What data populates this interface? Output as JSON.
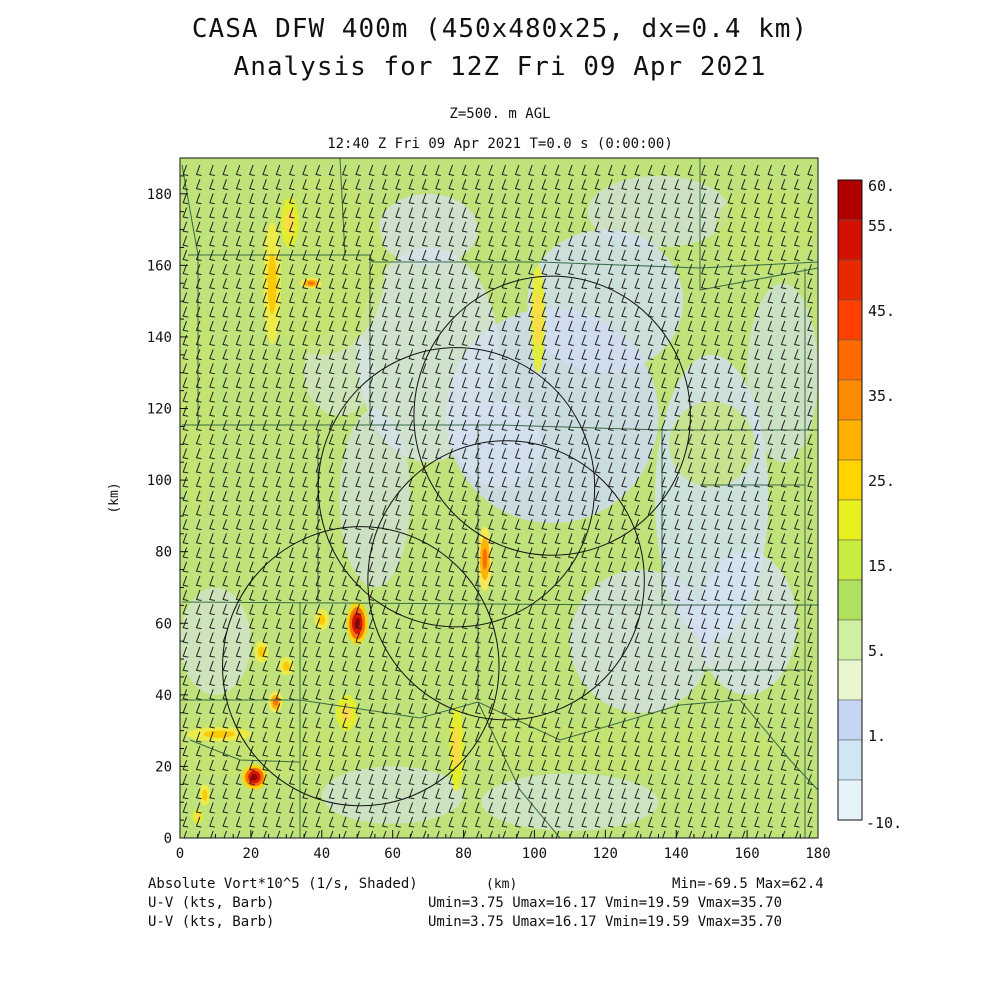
{
  "header": {
    "title_line1": "CASA DFW 400m (450x480x25, dx=0.4 km)",
    "title_line2": "Analysis for 12Z Fri 09 Apr 2021",
    "level": "Z=500. m AGL",
    "time": "12:40 Z Fri 09 Apr 2021   T=0.0 s (0:00:00)"
  },
  "footer": {
    "field_label": "Absolute Vort*10^5 (1/s, Shaded)",
    "xunit": "(km)",
    "minmax": "Min=-69.5 Max=62.4",
    "barb1_label": "U-V (kts, Barb)",
    "barb1_stats": "Umin=3.75 Umax=16.17 Vmin=19.59 Vmax=35.70",
    "barb2_label": "U-V (kts, Barb)",
    "barb2_stats": "Umin=3.75 Umax=16.17 Vmin=19.59 Vmax=35.70"
  },
  "chart_data": {
    "type": "heatmap",
    "title": "Absolute Vort*10^5 (1/s, Shaded)",
    "xlabel": "(km)",
    "ylabel": "(km)",
    "xlim": [
      0,
      180
    ],
    "ylim": [
      0,
      190
    ],
    "xticks": [
      0,
      20,
      40,
      60,
      80,
      100,
      120,
      140,
      160,
      180
    ],
    "yticks": [
      0,
      20,
      40,
      60,
      80,
      100,
      120,
      140,
      160,
      180
    ],
    "colorbar": {
      "labels": [
        "60.",
        "55.",
        "45.",
        "35.",
        "25.",
        "15.",
        "5.",
        "1.",
        "-10."
      ],
      "colors": [
        "#b00000",
        "#d41000",
        "#e82800",
        "#ff4000",
        "#ff6a00",
        "#ff8c00",
        "#ffb000",
        "#ffd400",
        "#e8f020",
        "#c8ec40",
        "#b0e060",
        "#cef0a0",
        "#eaf6d0",
        "#c8d4f4",
        "#d0e6f4",
        "#e6f4fa"
      ]
    },
    "palette": {
      "base_green": "#bfe37a",
      "light_blue": "#ccdaf2",
      "wind_barb": "#222222"
    },
    "hotspots": [
      {
        "x": 50,
        "y": 60,
        "value": 62.4,
        "rx": 3,
        "ry": 6
      },
      {
        "x": 21,
        "y": 17,
        "value": 55,
        "rx": 3.5,
        "ry": 3.5
      },
      {
        "x": 86,
        "y": 78,
        "value": 25,
        "rx": 2,
        "ry": 9
      },
      {
        "x": 26,
        "y": 155,
        "value": 22,
        "rx": 2.5,
        "ry": 17
      },
      {
        "x": 31,
        "y": 172,
        "value": 18,
        "rx": 2.5,
        "ry": 7
      },
      {
        "x": 37,
        "y": 155,
        "value": 25,
        "rx": 3,
        "ry": 1.5
      },
      {
        "x": 11,
        "y": 29,
        "value": 22,
        "rx": 9,
        "ry": 2
      },
      {
        "x": 27,
        "y": 38,
        "value": 28,
        "rx": 2,
        "ry": 3
      },
      {
        "x": 23,
        "y": 52,
        "value": 22,
        "rx": 2,
        "ry": 3
      },
      {
        "x": 30,
        "y": 48,
        "value": 20,
        "rx": 2,
        "ry": 2.5
      },
      {
        "x": 40,
        "y": 61,
        "value": 20,
        "rx": 2,
        "ry": 3
      },
      {
        "x": 7,
        "y": 12,
        "value": 20,
        "rx": 1.5,
        "ry": 3
      },
      {
        "x": 5,
        "y": 6,
        "value": 18,
        "rx": 1.5,
        "ry": 2
      },
      {
        "x": 101,
        "y": 145,
        "value": 18,
        "rx": 2,
        "ry": 15
      },
      {
        "x": 78,
        "y": 25,
        "value": 15,
        "rx": 2,
        "ry": 12
      },
      {
        "x": 47,
        "y": 35,
        "value": 15,
        "rx": 3,
        "ry": 5
      }
    ],
    "range_rings": [
      {
        "cx": 105,
        "cy": 118,
        "r": 39
      },
      {
        "cx": 78,
        "cy": 98,
        "r": 39
      },
      {
        "cx": 92,
        "cy": 72,
        "r": 39
      },
      {
        "cx": 51,
        "cy": 48,
        "r": 39
      }
    ],
    "barb_grid": {
      "nx": 48,
      "ny": 48,
      "direction_deg": 200
    }
  }
}
